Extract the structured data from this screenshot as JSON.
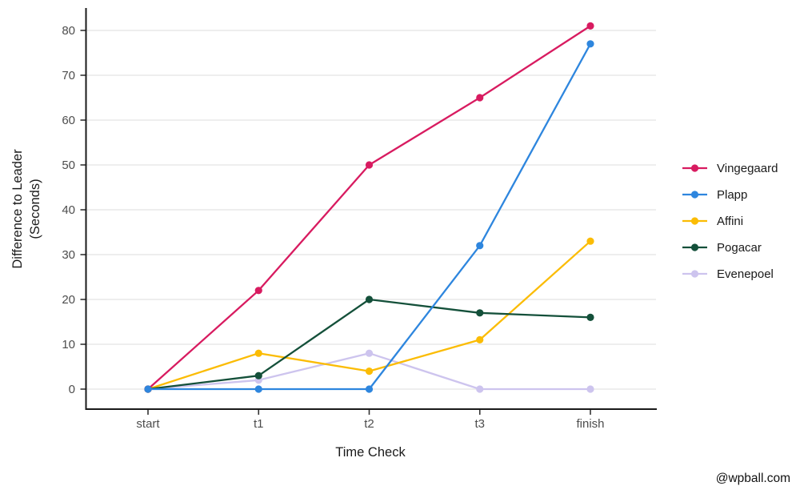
{
  "watermark": "@wpball.com",
  "chart_data": {
    "type": "line",
    "title": "",
    "xlabel": "Time Check",
    "ylabel": "Difference to Leader (Seconds)",
    "ylabel_lines": [
      "Difference to Leader",
      "(Seconds)"
    ],
    "categories": [
      "start",
      "t1",
      "t2",
      "t3",
      "finish"
    ],
    "series": [
      {
        "name": "Vingegaard",
        "color": "#D81B60",
        "values": [
          0,
          22,
          50,
          65,
          81
        ]
      },
      {
        "name": "Plapp",
        "color": "#2E86DE",
        "values": [
          0,
          0,
          0,
          32,
          77
        ]
      },
      {
        "name": "Affini",
        "color": "#FBBC04",
        "values": [
          0,
          8,
          4,
          11,
          33
        ]
      },
      {
        "name": "Pogacar",
        "color": "#14503A",
        "values": [
          0,
          3,
          20,
          17,
          16
        ]
      },
      {
        "name": "Evenepoel",
        "color": "#CDC4EE",
        "values": [
          0,
          2,
          8,
          0,
          0
        ]
      }
    ],
    "yticks": [
      0,
      10,
      20,
      30,
      40,
      50,
      60,
      70,
      80
    ],
    "ylim": [
      0,
      85
    ],
    "grid": "horizontal-major",
    "legend_position": "right",
    "theme": {
      "background": "#FFFFFF",
      "axis_line_color": "#1A1A1A",
      "grid_color": "#E9E9E9",
      "tick_color": "#333333",
      "tick_label_color": "#4D4D4D"
    }
  }
}
